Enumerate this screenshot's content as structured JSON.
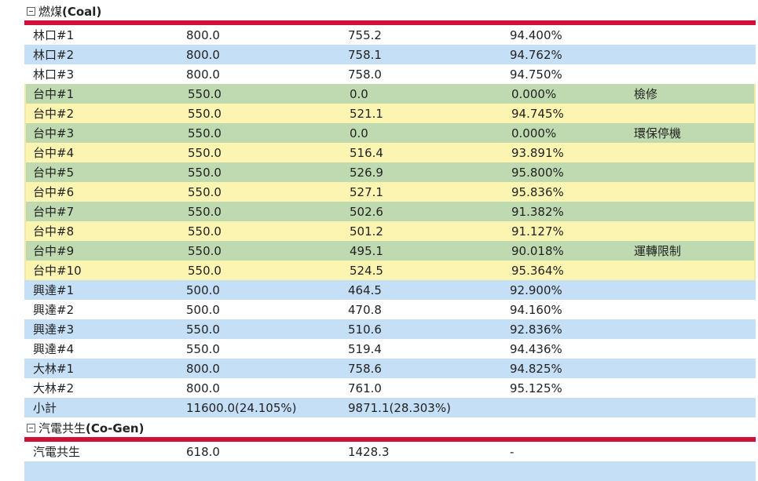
{
  "coal": {
    "title_zh": "燃煤",
    "title_en": "(Coal)",
    "rows": [
      {
        "name": "林口#1",
        "capacity": "800.0",
        "net": "755.2",
        "ratio": "94.400%",
        "note": ""
      },
      {
        "name": "林口#2",
        "capacity": "800.0",
        "net": "758.1",
        "ratio": "94.762%",
        "note": ""
      },
      {
        "name": "林口#3",
        "capacity": "800.0",
        "net": "758.0",
        "ratio": "94.750%",
        "note": ""
      },
      {
        "name": "台中#1",
        "capacity": "550.0",
        "net": "0.0",
        "ratio": "0.000%",
        "note": "檢修"
      },
      {
        "name": "台中#2",
        "capacity": "550.0",
        "net": "521.1",
        "ratio": "94.745%",
        "note": ""
      },
      {
        "name": "台中#3",
        "capacity": "550.0",
        "net": "0.0",
        "ratio": "0.000%",
        "note": "環保停機"
      },
      {
        "name": "台中#4",
        "capacity": "550.0",
        "net": "516.4",
        "ratio": "93.891%",
        "note": ""
      },
      {
        "name": "台中#5",
        "capacity": "550.0",
        "net": "526.9",
        "ratio": "95.800%",
        "note": ""
      },
      {
        "name": "台中#6",
        "capacity": "550.0",
        "net": "527.1",
        "ratio": "95.836%",
        "note": ""
      },
      {
        "name": "台中#7",
        "capacity": "550.0",
        "net": "502.6",
        "ratio": "91.382%",
        "note": ""
      },
      {
        "name": "台中#8",
        "capacity": "550.0",
        "net": "501.2",
        "ratio": "91.127%",
        "note": ""
      },
      {
        "name": "台中#9",
        "capacity": "550.0",
        "net": "495.1",
        "ratio": "90.018%",
        "note": "運轉限制"
      },
      {
        "name": "台中#10",
        "capacity": "550.0",
        "net": "524.5",
        "ratio": "95.364%",
        "note": ""
      },
      {
        "name": "興達#1",
        "capacity": "500.0",
        "net": "464.5",
        "ratio": "92.900%",
        "note": ""
      },
      {
        "name": "興達#2",
        "capacity": "500.0",
        "net": "470.8",
        "ratio": "94.160%",
        "note": ""
      },
      {
        "name": "興達#3",
        "capacity": "550.0",
        "net": "510.6",
        "ratio": "92.836%",
        "note": ""
      },
      {
        "name": "興達#4",
        "capacity": "550.0",
        "net": "519.4",
        "ratio": "94.436%",
        "note": ""
      },
      {
        "name": "大林#1",
        "capacity": "800.0",
        "net": "758.6",
        "ratio": "94.825%",
        "note": ""
      },
      {
        "name": "大林#2",
        "capacity": "800.0",
        "net": "761.0",
        "ratio": "95.125%",
        "note": ""
      }
    ],
    "subtotal": {
      "name": "小計",
      "capacity": "11600.0(24.105%)",
      "net": "9871.1(28.303%)",
      "ratio": "",
      "note": ""
    }
  },
  "cogen": {
    "title_zh": "汽電共生",
    "title_en": "(Co-Gen)",
    "rows": [
      {
        "name": "汽電共生",
        "capacity": "618.0",
        "net": "1428.3",
        "ratio": "-",
        "note": ""
      }
    ]
  },
  "colors": {
    "blue_row": "#c5dff6",
    "green_row": "#bfdab0",
    "yellow_row": "#fcf4b1",
    "rule": "#d0103a"
  }
}
